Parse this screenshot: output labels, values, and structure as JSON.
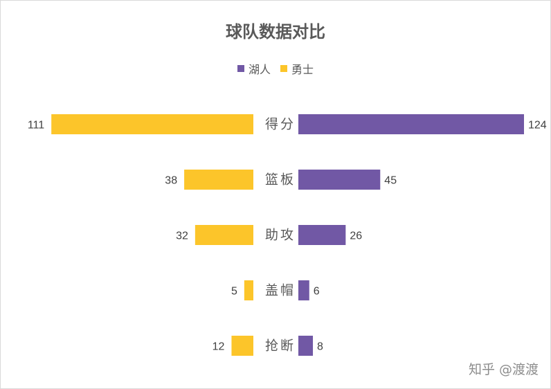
{
  "chart_data": {
    "type": "bar",
    "title": "球队数据对比",
    "categories": [
      "得分",
      "篮板",
      "助攻",
      "盖帽",
      "抢断"
    ],
    "series": [
      {
        "name": "湖人",
        "values": [
          124,
          45,
          26,
          6,
          8
        ],
        "color": "#7158a5"
      },
      {
        "name": "勇士",
        "values": [
          111,
          38,
          32,
          5,
          12
        ],
        "color": "#fcc52a"
      }
    ],
    "legend_position": "top",
    "grid": false
  },
  "watermark": "知乎 @渡渡"
}
